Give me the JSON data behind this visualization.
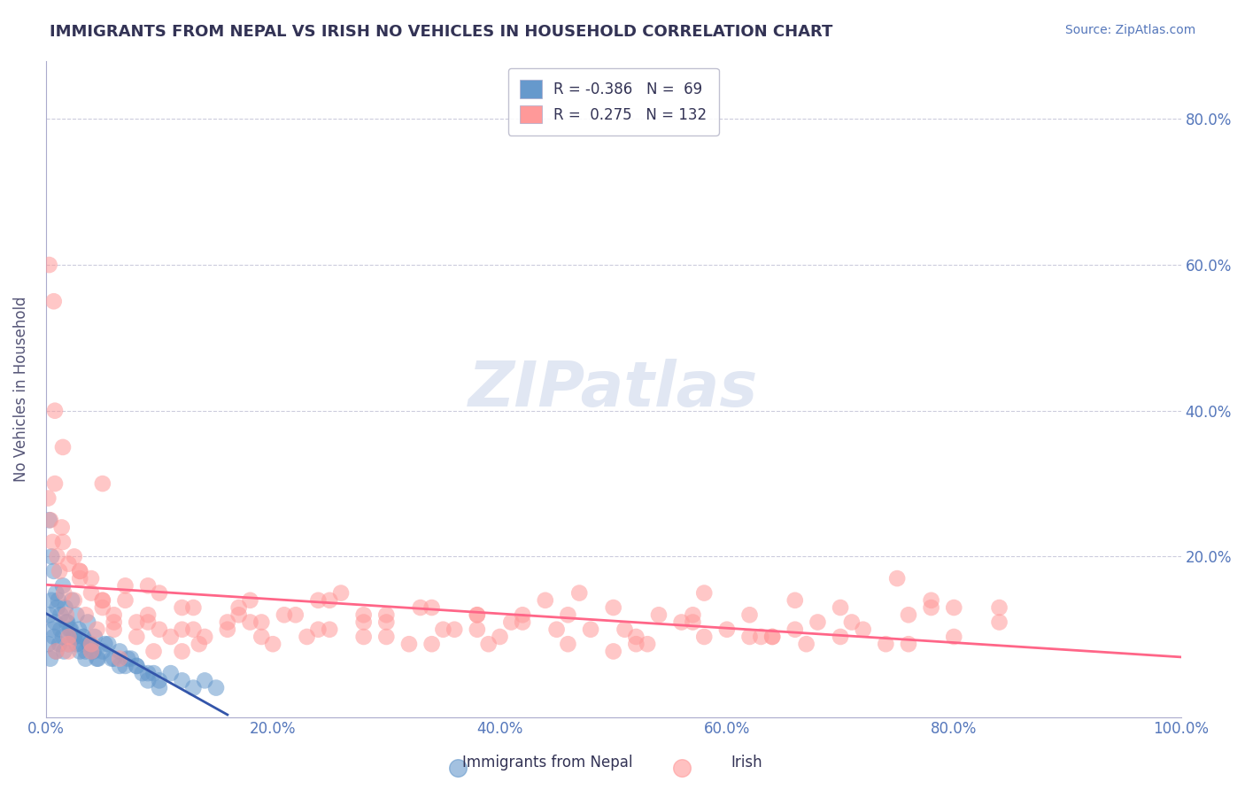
{
  "title": "IMMIGRANTS FROM NEPAL VS IRISH NO VEHICLES IN HOUSEHOLD CORRELATION CHART",
  "source_text": "Source: ZipAtlas.com",
  "xlabel": "",
  "ylabel": "No Vehicles in Household",
  "xlim": [
    0.0,
    1.0
  ],
  "ylim": [
    -0.02,
    0.88
  ],
  "xticks": [
    0.0,
    0.2,
    0.4,
    0.6,
    0.8,
    1.0
  ],
  "xticklabels": [
    "0.0%",
    "20.0%",
    "40.0%",
    "60.0%",
    "80.0%",
    "100.0%"
  ],
  "yticks": [
    0.2,
    0.4,
    0.6,
    0.8
  ],
  "yticklabels": [
    "20.0%",
    "40.0%",
    "60.0%",
    "80.0%"
  ],
  "legend_r1": "R = -0.386",
  "legend_n1": "N =  69",
  "legend_r2": "R =  0.275",
  "legend_n2": "N = 132",
  "blue_color": "#6699CC",
  "pink_color": "#FF9999",
  "blue_line_color": "#3355AA",
  "pink_line_color": "#FF6688",
  "title_color": "#333355",
  "axis_label_color": "#555577",
  "tick_color": "#5577BB",
  "watermark": "ZIPatlas",
  "background_color": "#FFFFFF",
  "grid_color": "#CCCCDD",
  "nepal_points_x": [
    0.002,
    0.003,
    0.004,
    0.005,
    0.006,
    0.007,
    0.008,
    0.009,
    0.01,
    0.012,
    0.013,
    0.015,
    0.016,
    0.018,
    0.02,
    0.022,
    0.025,
    0.027,
    0.03,
    0.033,
    0.035,
    0.038,
    0.04,
    0.043,
    0.045,
    0.05,
    0.055,
    0.06,
    0.065,
    0.07,
    0.075,
    0.08,
    0.085,
    0.09,
    0.095,
    0.1,
    0.11,
    0.12,
    0.13,
    0.14,
    0.15,
    0.003,
    0.005,
    0.007,
    0.009,
    0.011,
    0.013,
    0.015,
    0.017,
    0.019,
    0.021,
    0.023,
    0.025,
    0.027,
    0.029,
    0.031,
    0.033,
    0.035,
    0.037,
    0.039,
    0.042,
    0.046,
    0.052,
    0.058,
    0.065,
    0.072,
    0.08,
    0.09,
    0.1
  ],
  "nepal_points_y": [
    0.08,
    0.12,
    0.06,
    0.14,
    0.1,
    0.09,
    0.11,
    0.07,
    0.13,
    0.08,
    0.1,
    0.09,
    0.07,
    0.11,
    0.08,
    0.1,
    0.09,
    0.08,
    0.07,
    0.09,
    0.06,
    0.08,
    0.07,
    0.09,
    0.06,
    0.07,
    0.08,
    0.06,
    0.07,
    0.05,
    0.06,
    0.05,
    0.04,
    0.03,
    0.04,
    0.03,
    0.04,
    0.03,
    0.02,
    0.03,
    0.02,
    0.25,
    0.2,
    0.18,
    0.15,
    0.14,
    0.12,
    0.16,
    0.13,
    0.11,
    0.1,
    0.14,
    0.09,
    0.12,
    0.1,
    0.08,
    0.09,
    0.07,
    0.11,
    0.08,
    0.07,
    0.06,
    0.08,
    0.06,
    0.05,
    0.06,
    0.05,
    0.04,
    0.02
  ],
  "irish_points_x": [
    0.002,
    0.004,
    0.006,
    0.008,
    0.01,
    0.012,
    0.014,
    0.016,
    0.018,
    0.02,
    0.025,
    0.03,
    0.035,
    0.04,
    0.045,
    0.05,
    0.06,
    0.07,
    0.08,
    0.09,
    0.1,
    0.12,
    0.14,
    0.16,
    0.18,
    0.2,
    0.22,
    0.24,
    0.26,
    0.28,
    0.3,
    0.32,
    0.34,
    0.36,
    0.38,
    0.4,
    0.42,
    0.44,
    0.46,
    0.48,
    0.5,
    0.52,
    0.54,
    0.56,
    0.58,
    0.6,
    0.62,
    0.64,
    0.66,
    0.68,
    0.7,
    0.72,
    0.74,
    0.76,
    0.78,
    0.8,
    0.003,
    0.007,
    0.015,
    0.025,
    0.04,
    0.06,
    0.09,
    0.13,
    0.18,
    0.25,
    0.33,
    0.42,
    0.52,
    0.63,
    0.75,
    0.008,
    0.015,
    0.03,
    0.05,
    0.08,
    0.12,
    0.17,
    0.23,
    0.3,
    0.38,
    0.47,
    0.57,
    0.67,
    0.02,
    0.05,
    0.1,
    0.17,
    0.25,
    0.35,
    0.46,
    0.58,
    0.71,
    0.84,
    0.03,
    0.07,
    0.13,
    0.21,
    0.3,
    0.41,
    0.53,
    0.66,
    0.8,
    0.05,
    0.11,
    0.19,
    0.28,
    0.39,
    0.51,
    0.64,
    0.78,
    0.04,
    0.09,
    0.16,
    0.24,
    0.34,
    0.45,
    0.57,
    0.7,
    0.84,
    0.02,
    0.06,
    0.12,
    0.19,
    0.28,
    0.38,
    0.5,
    0.62,
    0.76,
    0.009,
    0.02,
    0.04,
    0.065,
    0.095,
    0.135
  ],
  "irish_points_y": [
    0.28,
    0.25,
    0.22,
    0.3,
    0.2,
    0.18,
    0.24,
    0.15,
    0.12,
    0.19,
    0.14,
    0.17,
    0.12,
    0.15,
    0.1,
    0.13,
    0.11,
    0.14,
    0.09,
    0.12,
    0.1,
    0.13,
    0.09,
    0.11,
    0.14,
    0.08,
    0.12,
    0.1,
    0.15,
    0.09,
    0.11,
    0.08,
    0.13,
    0.1,
    0.12,
    0.09,
    0.11,
    0.14,
    0.08,
    0.1,
    0.13,
    0.09,
    0.12,
    0.11,
    0.15,
    0.1,
    0.12,
    0.09,
    0.14,
    0.11,
    0.13,
    0.1,
    0.08,
    0.12,
    0.14,
    0.09,
    0.6,
    0.55,
    0.35,
    0.2,
    0.17,
    0.12,
    0.16,
    0.13,
    0.11,
    0.1,
    0.13,
    0.12,
    0.08,
    0.09,
    0.17,
    0.4,
    0.22,
    0.18,
    0.14,
    0.11,
    0.1,
    0.13,
    0.09,
    0.12,
    0.1,
    0.15,
    0.11,
    0.08,
    0.07,
    0.3,
    0.15,
    0.12,
    0.14,
    0.1,
    0.12,
    0.09,
    0.11,
    0.13,
    0.18,
    0.16,
    0.1,
    0.12,
    0.09,
    0.11,
    0.08,
    0.1,
    0.13,
    0.14,
    0.09,
    0.11,
    0.12,
    0.08,
    0.1,
    0.09,
    0.13,
    0.07,
    0.11,
    0.1,
    0.14,
    0.08,
    0.1,
    0.12,
    0.09,
    0.11,
    0.08,
    0.1,
    0.07,
    0.09,
    0.11,
    0.12,
    0.07,
    0.09,
    0.08,
    0.07,
    0.09,
    0.08,
    0.06,
    0.07,
    0.08
  ]
}
